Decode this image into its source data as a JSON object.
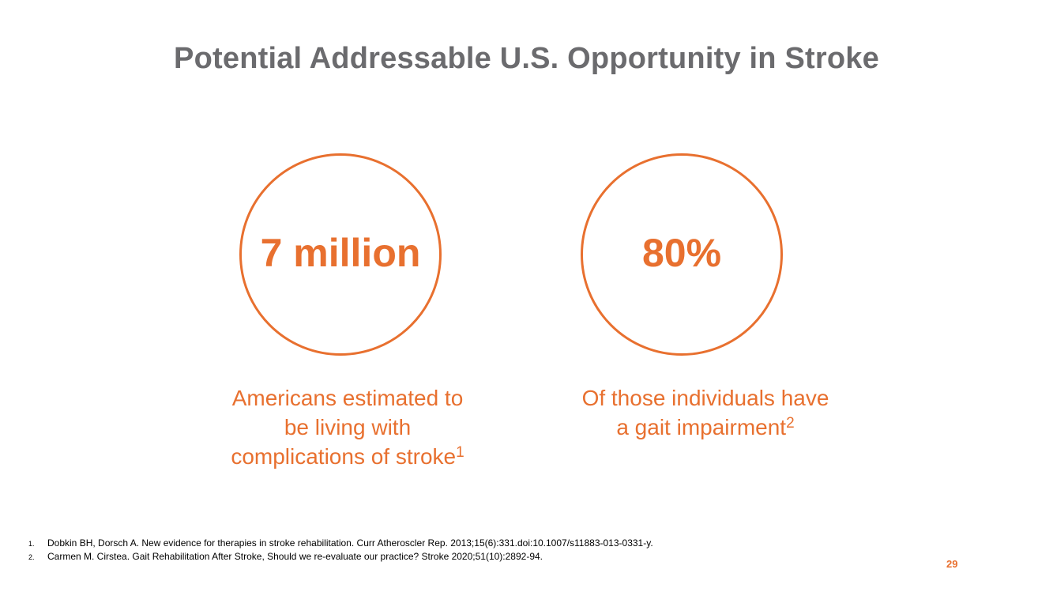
{
  "slide": {
    "title": "Potential Addressable U.S. Opportunity in Stroke",
    "page_number": "29"
  },
  "stats": [
    {
      "value": "7 million",
      "caption_lines": [
        "Americans estimated to",
        "be living with",
        "complications of stroke"
      ],
      "footnote_ref": "1"
    },
    {
      "value": "80%",
      "caption_lines": [
        "Of those individuals have",
        "a gait impairment"
      ],
      "footnote_ref": "2"
    }
  ],
  "footnotes": [
    {
      "num": "1.",
      "text": "Dobkin BH, Dorsch A. New evidence for therapies in stroke rehabilitation. Curr Atheroscler Rep. 2013;15(6):331.doi:10.1007/s11883-013-0331-y."
    },
    {
      "num": "2.",
      "text": "Carmen M. Cirstea. Gait Rehabilitation After Stroke, Should we re-evaluate our practice? Stroke 2020;51(10):2892-94."
    }
  ],
  "colors": {
    "accent": "#e8702f",
    "title": "#6b6b6e",
    "footnote_text": "#000000",
    "background": "#ffffff"
  }
}
